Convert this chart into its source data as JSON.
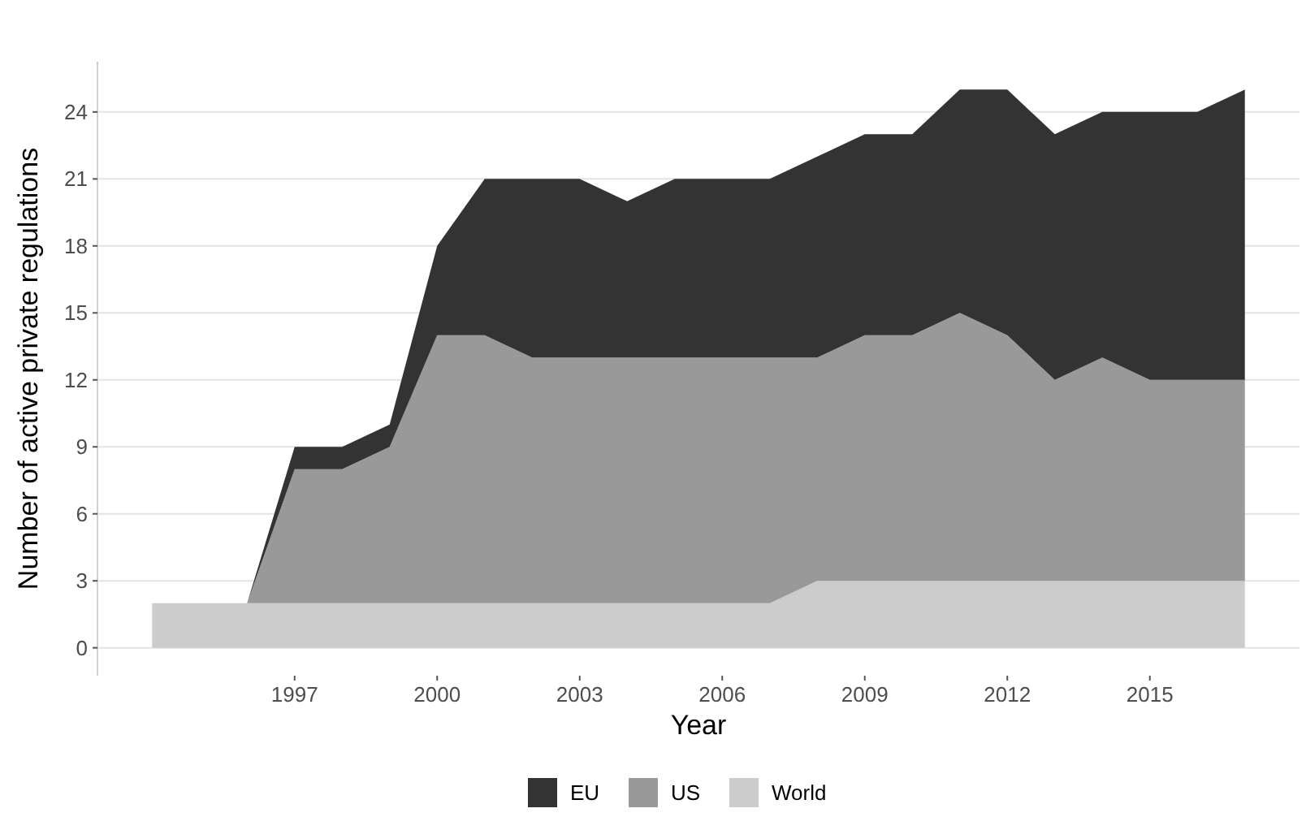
{
  "chart_data": {
    "type": "area",
    "stacked": true,
    "xlabel": "Year",
    "ylabel": "Number of active private regulations",
    "x": [
      1994,
      1995,
      1996,
      1997,
      1998,
      1999,
      2000,
      2001,
      2002,
      2003,
      2004,
      2005,
      2006,
      2007,
      2008,
      2009,
      2010,
      2011,
      2012,
      2013,
      2014,
      2015,
      2016,
      2017
    ],
    "series": [
      {
        "name": "World",
        "color": "#cccccc",
        "values": [
          2,
          2,
          2,
          2,
          2,
          2,
          2,
          2,
          2,
          2,
          2,
          2,
          2,
          2,
          3,
          3,
          3,
          3,
          3,
          3,
          3,
          3,
          3,
          3
        ]
      },
      {
        "name": "US",
        "color": "#999999",
        "values": [
          0,
          0,
          0,
          6,
          6,
          7,
          12,
          12,
          11,
          11,
          11,
          11,
          11,
          11,
          10,
          11,
          11,
          12,
          11,
          9,
          10,
          9,
          9,
          9
        ]
      },
      {
        "name": "EU",
        "color": "#333333",
        "values": [
          0,
          0,
          0,
          1,
          1,
          1,
          4,
          7,
          8,
          8,
          7,
          8,
          8,
          8,
          9,
          9,
          9,
          10,
          11,
          11,
          11,
          12,
          12,
          13
        ]
      }
    ],
    "xlim": [
      1992.85,
      2018.15
    ],
    "xticks": [
      1997,
      2000,
      2003,
      2006,
      2009,
      2012,
      2015
    ],
    "ylim": [
      -1.25,
      26.25
    ],
    "yticks": [
      0,
      3,
      6,
      9,
      12,
      15,
      18,
      21,
      24
    ],
    "grid": "y",
    "legend": "bottom"
  }
}
